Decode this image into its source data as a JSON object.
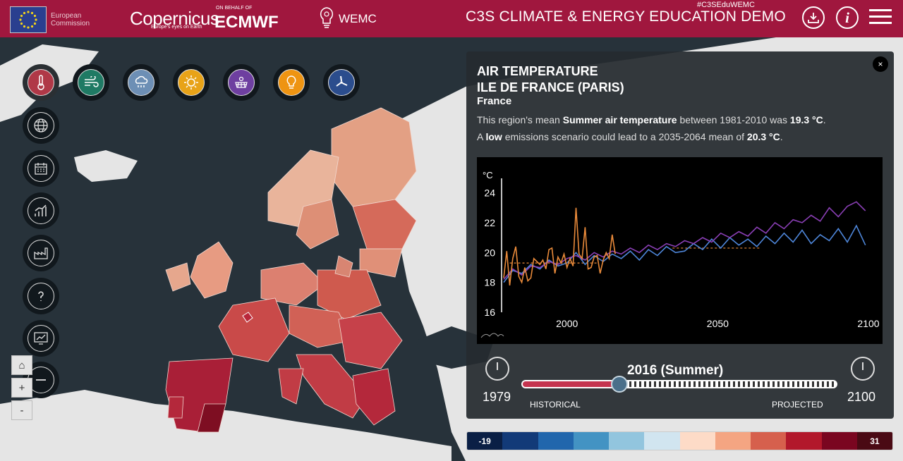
{
  "header": {
    "ec_text_line1": "European",
    "ec_text_line2": "Commission",
    "copernicus": "Copernicus",
    "copernicus_tagline": "Europe's eyes on Earth",
    "ecmwf_prefix": "ON BEHALF OF",
    "ecmwf": "ECMWF",
    "wemc": "WEMC",
    "hashtag": "#C3SEduWEMC",
    "title": "C3S CLIMATE & ENERGY EDUCATION DEMO",
    "info_label": "i"
  },
  "toolbar": {
    "variables": [
      {
        "name": "air-temperature",
        "color": "#b03847"
      },
      {
        "name": "wind",
        "color": "#1f7a64"
      },
      {
        "name": "precipitation",
        "color": "#6d8fb5"
      },
      {
        "name": "solar",
        "color": "#e8a318"
      },
      {
        "name": "solar-panel",
        "color": "#6e3fa0"
      },
      {
        "name": "energy-demand",
        "color": "#ee9412"
      },
      {
        "name": "wind-power",
        "color": "#2b4d8d"
      }
    ]
  },
  "zoom": {
    "home": "⌂",
    "in": "+",
    "out": "-"
  },
  "panel": {
    "title_line1": "AIR TEMPERATURE",
    "title_line2": "ILE DE FRANCE (PARIS)",
    "country": "France",
    "desc1_pre": "This region's mean ",
    "desc1_bold": "Summer air temperature",
    "desc1_mid": " between 1981-2010 was ",
    "desc1_value": "19.3 °C",
    "desc1_end": ".",
    "desc2_pre": "A ",
    "desc2_bold": "low",
    "desc2_mid": " emissions scenario could lead to a 2035-2064 mean of ",
    "desc2_value": "20.3 °C",
    "desc2_end": ".",
    "close_label": "×",
    "slider_title": "2016 (Summer)",
    "start_year": "1979",
    "end_year": "2100",
    "historical_label": "HISTORICAL",
    "projected_label": "PROJECTED",
    "slider_position": 0.31
  },
  "chart_data": {
    "type": "line",
    "ylabel": "°C",
    "ylim": [
      16,
      24.5
    ],
    "yticks": [
      16,
      18,
      20,
      22,
      24
    ],
    "xlim": [
      1979,
      2100
    ],
    "xticks": [
      2000,
      2050,
      2100
    ],
    "series": [
      {
        "color": "#e98a3a",
        "x": [
          1979,
          1980,
          1981,
          1982,
          1983,
          1984,
          1985,
          1986,
          1987,
          1988,
          1989,
          1990,
          1991,
          1992,
          1993,
          1994,
          1995,
          1996,
          1997,
          1998,
          1999,
          2000,
          2001,
          2002,
          2003,
          2004,
          2005,
          2006,
          2007,
          2008,
          2009,
          2010,
          2011,
          2012,
          2013,
          2014,
          2015,
          2016
        ],
        "y": [
          18.3,
          20.1,
          17.8,
          19.6,
          20.4,
          18.4,
          18.0,
          19.0,
          18.1,
          18.3,
          19.6,
          19.4,
          19.2,
          19.5,
          18.9,
          20.2,
          20.3,
          18.6,
          19.7,
          19.3,
          19.9,
          19.0,
          19.6,
          19.1,
          23.0,
          19.9,
          19.6,
          21.7,
          18.9,
          19.0,
          19.7,
          19.8,
          18.6,
          19.5,
          20.0,
          19.6,
          21.2,
          19.9
        ]
      },
      {
        "color": "#4e86d9",
        "x": [
          1979,
          1982,
          1985,
          1988,
          1991,
          1994,
          1997,
          2000,
          2003,
          2006,
          2009,
          2012,
          2015,
          2018,
          2021,
          2024,
          2027,
          2030,
          2033,
          2036,
          2039,
          2042,
          2045,
          2048,
          2051,
          2054,
          2057,
          2060,
          2063,
          2066,
          2069,
          2072,
          2075,
          2078,
          2081,
          2084,
          2087,
          2090,
          2093,
          2096,
          2099
        ],
        "y": [
          18.0,
          18.8,
          18.6,
          19.2,
          18.9,
          19.5,
          19.1,
          19.3,
          20.0,
          19.2,
          19.8,
          19.4,
          19.9,
          19.6,
          20.1,
          19.5,
          20.2,
          19.8,
          20.4,
          20.0,
          20.1,
          20.6,
          20.2,
          20.9,
          20.3,
          21.0,
          20.5,
          20.9,
          20.4,
          21.1,
          20.6,
          21.3,
          20.7,
          21.5,
          20.6,
          21.2,
          20.8,
          21.6,
          20.7,
          21.8,
          20.5
        ]
      },
      {
        "color": "#8a3fb5",
        "x": [
          1979,
          1982,
          1985,
          1988,
          1991,
          1994,
          1997,
          2000,
          2003,
          2006,
          2009,
          2012,
          2015,
          2018,
          2021,
          2024,
          2027,
          2030,
          2033,
          2036,
          2039,
          2042,
          2045,
          2048,
          2051,
          2054,
          2057,
          2060,
          2063,
          2066,
          2069,
          2072,
          2075,
          2078,
          2081,
          2084,
          2087,
          2090,
          2093,
          2096,
          2099
        ],
        "y": [
          18.2,
          18.9,
          18.5,
          19.1,
          19.0,
          19.4,
          19.2,
          19.6,
          19.8,
          19.5,
          20.0,
          19.7,
          20.1,
          19.9,
          20.3,
          20.0,
          20.5,
          20.2,
          20.6,
          20.4,
          20.8,
          20.6,
          21.0,
          20.7,
          21.3,
          21.0,
          21.4,
          21.1,
          21.7,
          21.3,
          22.0,
          21.6,
          22.2,
          22.0,
          22.5,
          22.1,
          23.0,
          22.4,
          23.1,
          23.4,
          22.8
        ]
      }
    ],
    "reference_lines": [
      {
        "x_from": 1981,
        "x_to": 2010,
        "y": 19.3,
        "color": "#e98a3a"
      },
      {
        "x_from": 2035,
        "x_to": 2064,
        "y": 20.3,
        "color": "#e98a3a"
      }
    ],
    "grid": false
  },
  "legend": {
    "min_label": "-19",
    "max_label": "31",
    "colors": [
      "#0a1f45",
      "#123a78",
      "#2166ac",
      "#4393c3",
      "#92c5de",
      "#d1e5f0",
      "#fddbc7",
      "#f4a582",
      "#d6604d",
      "#b2182b",
      "#7a0620",
      "#4a0a14"
    ]
  }
}
